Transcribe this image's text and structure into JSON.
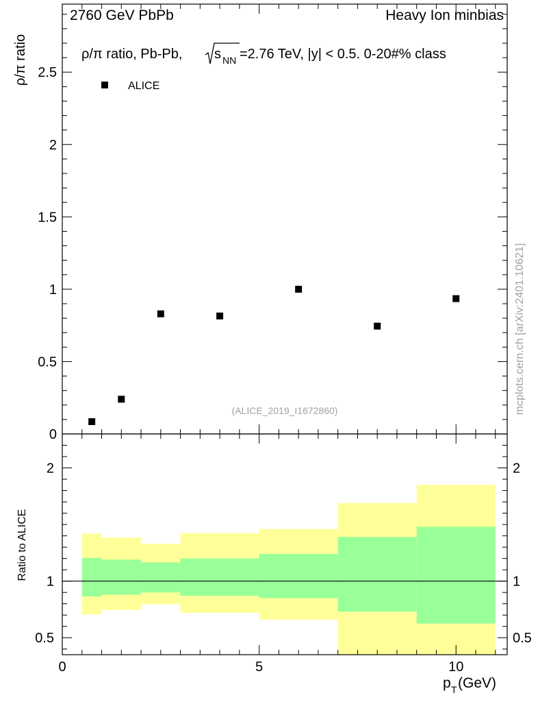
{
  "header": {
    "left": "2760 GeV PbPb",
    "right": "Heavy Ion minbias"
  },
  "watermark": "mcplots.cern.ch [arXiv:2401.10621]",
  "analysis_tag": "(ALICE_2019_I1672860)",
  "colors": {
    "band_outer": "#ffff99",
    "band_inner": "#99ff99",
    "marker": "#000000"
  },
  "chart_data": [
    {
      "type": "scatter",
      "title_parts": {
        "lead": "ρ/π ratio, Pb-Pb,",
        "sqrt_s": "s",
        "sub": "NN",
        "tail": "=2.76 TeV, |y| < 0.5. 0-20#% class"
      },
      "ylabel": "ρ/π ratio",
      "xlim": [
        0,
        11.3
      ],
      "ylim": [
        0,
        2.97
      ],
      "y_ticks": [
        {
          "v": 0,
          "label": "0"
        },
        {
          "v": 0.5,
          "label": "0.5"
        },
        {
          "v": 1,
          "label": "1"
        },
        {
          "v": 1.5,
          "label": "1.5"
        },
        {
          "v": 2,
          "label": "2"
        },
        {
          "v": 2.5,
          "label": "2.5"
        }
      ],
      "legend": [
        "ALICE"
      ],
      "legend_position": "top-left",
      "series": [
        {
          "name": "ALICE",
          "points": [
            {
              "x": 0.75,
              "y": 0.085
            },
            {
              "x": 1.5,
              "y": 0.24
            },
            {
              "x": 2.5,
              "y": 0.83
            },
            {
              "x": 4.0,
              "y": 0.815
            },
            {
              "x": 6.0,
              "y": 1.0
            },
            {
              "x": 8.0,
              "y": 0.745
            },
            {
              "x": 10.0,
              "y": 0.935
            }
          ]
        }
      ]
    },
    {
      "type": "area",
      "ylabel": "Ratio to ALICE",
      "xlabel_main": "p",
      "xlabel_sub": "T",
      "xlabel_unit": " (GeV)",
      "xlim": [
        0,
        11.3
      ],
      "ylim": [
        0.35,
        2.3
      ],
      "reference_line": 1,
      "x_ticks": [
        {
          "v": 0,
          "label": "0"
        },
        {
          "v": 5,
          "label": "5"
        },
        {
          "v": 10,
          "label": "10"
        }
      ],
      "y_ticks": [
        {
          "v": 0.5,
          "label": "0.5"
        },
        {
          "v": 1,
          "label": "1"
        },
        {
          "v": 2,
          "label": "2"
        }
      ],
      "bins": [
        {
          "lo": 0.5,
          "hi": 1.0,
          "inner": [
            0.865,
            1.205
          ],
          "outer": [
            0.705,
            1.42
          ]
        },
        {
          "lo": 1.0,
          "hi": 2.0,
          "inner": [
            0.88,
            1.19
          ],
          "outer": [
            0.745,
            1.385
          ]
        },
        {
          "lo": 2.0,
          "hi": 3.0,
          "inner": [
            0.9,
            1.165
          ],
          "outer": [
            0.795,
            1.33
          ]
        },
        {
          "lo": 3.0,
          "hi": 5.0,
          "inner": [
            0.87,
            1.2
          ],
          "outer": [
            0.72,
            1.425
          ]
        },
        {
          "lo": 5.0,
          "hi": 7.0,
          "inner": [
            0.85,
            1.24
          ],
          "outer": [
            0.66,
            1.46
          ]
        },
        {
          "lo": 7.0,
          "hi": 9.0,
          "inner": [
            0.73,
            1.39
          ],
          "outer": [
            0.35,
            1.69
          ]
        },
        {
          "lo": 9.0,
          "hi": 11.0,
          "inner": [
            0.625,
            1.48
          ],
          "outer": [
            0.35,
            1.85
          ]
        }
      ]
    }
  ]
}
